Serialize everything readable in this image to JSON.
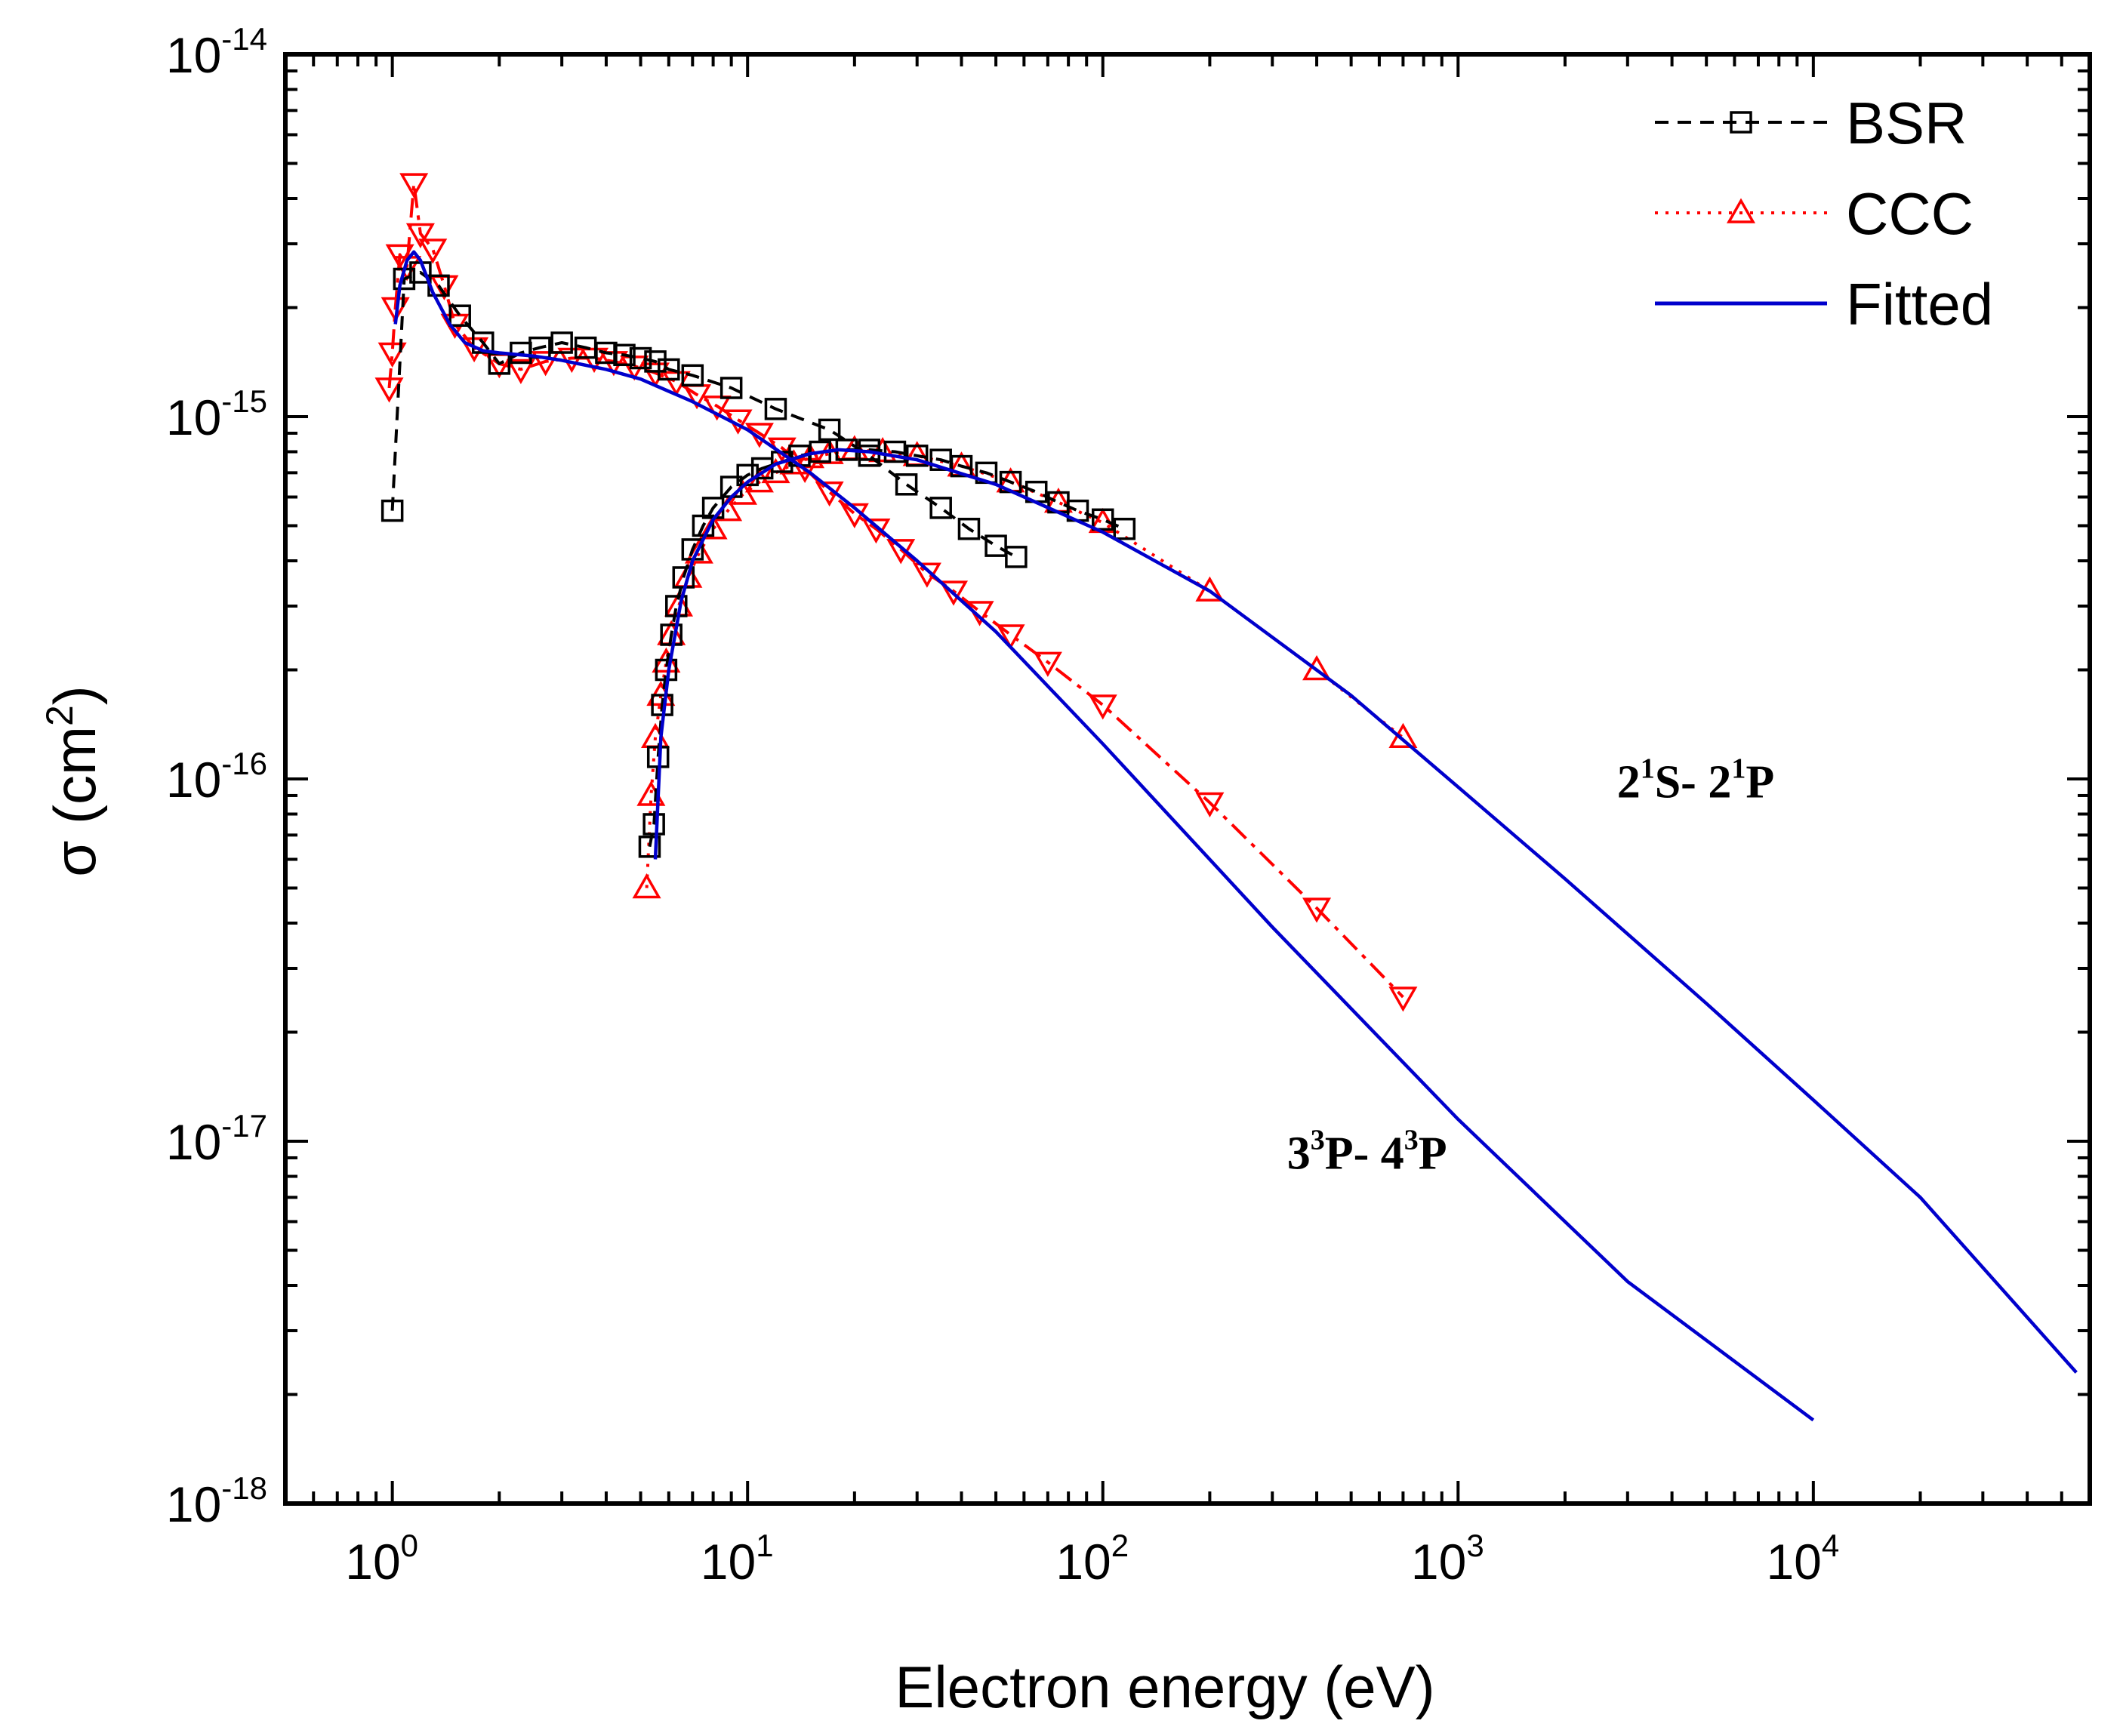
{
  "chart_data": {
    "type": "line",
    "title": "",
    "xlabel": "Electron energy (eV)",
    "ylabel_prefix": "σ (cm",
    "ylabel_sup": "2",
    "ylabel_suffix": ")",
    "xscale": "log",
    "yscale": "log",
    "xlim": [
      0.5,
      60000
    ],
    "ylim": [
      1e-18,
      1e-14
    ],
    "x_ticks": [
      {
        "base": "10",
        "exp": "0",
        "value": 1
      },
      {
        "base": "10",
        "exp": "1",
        "value": 10
      },
      {
        "base": "10",
        "exp": "2",
        "value": 100
      },
      {
        "base": "10",
        "exp": "3",
        "value": 1000
      },
      {
        "base": "10",
        "exp": "4",
        "value": 10000
      }
    ],
    "y_ticks": [
      {
        "base": "10",
        "exp": "-14",
        "value": 1e-14
      },
      {
        "base": "10",
        "exp": "-15",
        "value": 1e-15
      },
      {
        "base": "10",
        "exp": "-16",
        "value": 1e-16
      },
      {
        "base": "10",
        "exp": "-17",
        "value": 1e-17
      },
      {
        "base": "10",
        "exp": "-18",
        "value": 1e-18
      }
    ],
    "legend": {
      "position": "top-right",
      "entries": [
        {
          "label": "BSR",
          "color": "#000000",
          "line": "dashed",
          "marker": "square"
        },
        {
          "label": "CCC",
          "color": "#ff0000",
          "line": "dotted",
          "marker": "triangle-up"
        },
        {
          "label": "Fitted",
          "color": "#0000cc",
          "line": "solid",
          "marker": "none"
        }
      ]
    },
    "annotations": [
      {
        "id": "label-21s-21p",
        "parts": [
          {
            "t": "2",
            "sup": false
          },
          {
            "t": "1",
            "sup": true
          },
          {
            "t": "S- 2",
            "sup": false
          },
          {
            "t": "1",
            "sup": true
          },
          {
            "t": "P",
            "sup": false
          }
        ],
        "x": 2800,
        "y": 8.9e-17
      },
      {
        "id": "label-33p-43p",
        "parts": [
          {
            "t": "3",
            "sup": false
          },
          {
            "t": "3",
            "sup": true
          },
          {
            "t": "P- 4",
            "sup": false
          },
          {
            "t": "3",
            "sup": true
          },
          {
            "t": "P",
            "sup": false
          }
        ],
        "x": 330,
        "y": 8.4e-18
      }
    ],
    "series": [
      {
        "name": "BSR 3³P-4³P",
        "color": "#000000",
        "line": "dashed",
        "marker": "square",
        "x": [
          1.0,
          1.08,
          1.2,
          1.35,
          1.55,
          1.8,
          2.0,
          2.3,
          2.6,
          3.0,
          3.5,
          4.0,
          4.5,
          5.0,
          5.5,
          6.0,
          7.0,
          9.0,
          12.0,
          17.0,
          22.0,
          28.0,
          35.0,
          42.0,
          50.0,
          57.0
        ],
        "y": [
          5.5e-16,
          2.4e-15,
          2.5e-15,
          2.3e-15,
          1.9e-15,
          1.6e-15,
          1.4e-15,
          1.5e-15,
          1.55e-15,
          1.6e-15,
          1.55e-15,
          1.5e-15,
          1.48e-15,
          1.45e-15,
          1.42e-15,
          1.35e-15,
          1.3e-15,
          1.2e-15,
          1.05e-15,
          9.2e-16,
          7.8e-16,
          6.5e-16,
          5.6e-16,
          4.9e-16,
          4.4e-16,
          4.1e-16
        ]
      },
      {
        "name": "CCC 3³P-4³P",
        "color": "#ff0000",
        "line": "dashdot",
        "marker": "triangle-down",
        "x": [
          0.98,
          1.0,
          1.02,
          1.05,
          1.1,
          1.15,
          1.2,
          1.3,
          1.4,
          1.5,
          1.7,
          2.0,
          2.3,
          2.7,
          3.2,
          3.7,
          4.2,
          4.8,
          5.5,
          6.3,
          7.2,
          8.2,
          9.4,
          10.8,
          12.5,
          14.5,
          17.0,
          20.0,
          23.0,
          27.0,
          32.0,
          38.0,
          45.0,
          55.0,
          70.0,
          100.0,
          200.0,
          400.0,
          700.0
        ],
        "y": [
          1.2e-15,
          1.5e-15,
          2e-15,
          2.8e-15,
          2.6e-15,
          4.4e-15,
          3.2e-15,
          2.9e-15,
          2.3e-15,
          1.8e-15,
          1.55e-15,
          1.4e-15,
          1.35e-15,
          1.42e-15,
          1.45e-15,
          1.45e-15,
          1.42e-15,
          1.38e-15,
          1.32e-15,
          1.25e-15,
          1.15e-15,
          1.07e-15,
          9.8e-16,
          9e-16,
          8.2e-16,
          7.2e-16,
          6.2e-16,
          5.4e-16,
          4.9e-16,
          4.3e-16,
          3.7e-16,
          3.3e-16,
          2.9e-16,
          2.5e-16,
          2.1e-16,
          1.6e-16,
          8.6e-17,
          4.4e-17,
          2.5e-17
        ]
      },
      {
        "name": "Fitted 3³P-4³P",
        "color": "#0000cc",
        "line": "solid",
        "marker": "none",
        "x": [
          1.02,
          1.05,
          1.1,
          1.15,
          1.2,
          1.3,
          1.45,
          1.6,
          1.8,
          2.0,
          2.5,
          3.0,
          4.0,
          5.0,
          7.0,
          10.0,
          15.0,
          20.0,
          30.0,
          50.0,
          100.0,
          300.0,
          1000.0,
          3000.0,
          10000.0
        ],
        "y": [
          1.8e-15,
          2.3e-15,
          2.7e-15,
          2.85e-15,
          2.7e-15,
          2.2e-15,
          1.8e-15,
          1.6e-15,
          1.52e-15,
          1.5e-15,
          1.47e-15,
          1.43e-15,
          1.35e-15,
          1.27e-15,
          1.1e-15,
          9.2e-16,
          7e-16,
          5.6e-16,
          4e-16,
          2.55e-16,
          1.25e-16,
          3.9e-17,
          1.15e-17,
          4.1e-18,
          1.7e-18
        ]
      },
      {
        "name": "BSR 2¹S-2¹P",
        "color": "#000000",
        "line": "dashed",
        "marker": "square",
        "x": [
          5.3,
          5.45,
          5.6,
          5.75,
          5.9,
          6.1,
          6.3,
          6.6,
          7.0,
          7.5,
          8.0,
          9.0,
          10.0,
          11.0,
          12.5,
          14.0,
          16.0,
          19.0,
          22.0,
          26.0,
          30.0,
          35.0,
          40.0,
          47.0,
          55.0,
          65.0,
          75.0,
          85.0,
          100.0,
          115.0
        ],
        "y": [
          6.5e-17,
          7.5e-17,
          1.15e-16,
          1.6e-16,
          2e-16,
          2.5e-16,
          3e-16,
          3.6e-16,
          4.3e-16,
          5e-16,
          5.6e-16,
          6.4e-16,
          6.9e-16,
          7.2e-16,
          7.5e-16,
          7.8e-16,
          8e-16,
          8.1e-16,
          8.1e-16,
          8e-16,
          7.8e-16,
          7.6e-16,
          7.3e-16,
          7e-16,
          6.6e-16,
          6.2e-16,
          5.8e-16,
          5.5e-16,
          5.2e-16,
          4.9e-16
        ]
      },
      {
        "name": "CCC 2¹S-2¹P",
        "color": "#ff0000",
        "line": "dotted",
        "marker": "triangle-up",
        "x": [
          5.2,
          5.35,
          5.5,
          5.7,
          5.9,
          6.1,
          6.4,
          6.8,
          7.3,
          8.0,
          8.8,
          9.7,
          10.8,
          12.0,
          13.5,
          15.0,
          17.0,
          20.0,
          24.0,
          30.0,
          40.0,
          55.0,
          75.0,
          100.0,
          200.0,
          400.0,
          700.0
        ],
        "y": [
          5e-17,
          9e-17,
          1.3e-16,
          1.7e-16,
          2.1e-16,
          2.5e-16,
          3e-16,
          3.6e-16,
          4.2e-16,
          4.9e-16,
          5.5e-16,
          6.1e-16,
          6.6e-16,
          7e-16,
          7.4e-16,
          7.7e-16,
          7.9e-16,
          8.1e-16,
          8e-16,
          7.8e-16,
          7.3e-16,
          6.6e-16,
          5.8e-16,
          5.1e-16,
          3.3e-16,
          2e-16,
          1.3e-16
        ]
      },
      {
        "name": "Fitted 2¹S-2¹P",
        "color": "#0000cc",
        "line": "solid",
        "marker": "none",
        "x": [
          5.5,
          5.7,
          6.0,
          6.5,
          7.0,
          8.0,
          9.0,
          10.0,
          12.0,
          15.0,
          18.0,
          22.0,
          30.0,
          50.0,
          100.0,
          200.0,
          500.0,
          1000.0,
          2000.0,
          5000.0,
          10000.0,
          20000.0,
          55000.0
        ],
        "y": [
          6e-17,
          1.3e-16,
          2e-16,
          3.1e-16,
          4e-16,
          5.2e-16,
          6e-16,
          6.6e-16,
          7.4e-16,
          7.9e-16,
          8.1e-16,
          8e-16,
          7.6e-16,
          6.5e-16,
          4.8e-16,
          3.3e-16,
          1.7e-16,
          9.5e-17,
          5.3e-17,
          2.4e-17,
          1.3e-17,
          7e-18,
          2.3e-18
        ]
      }
    ]
  }
}
